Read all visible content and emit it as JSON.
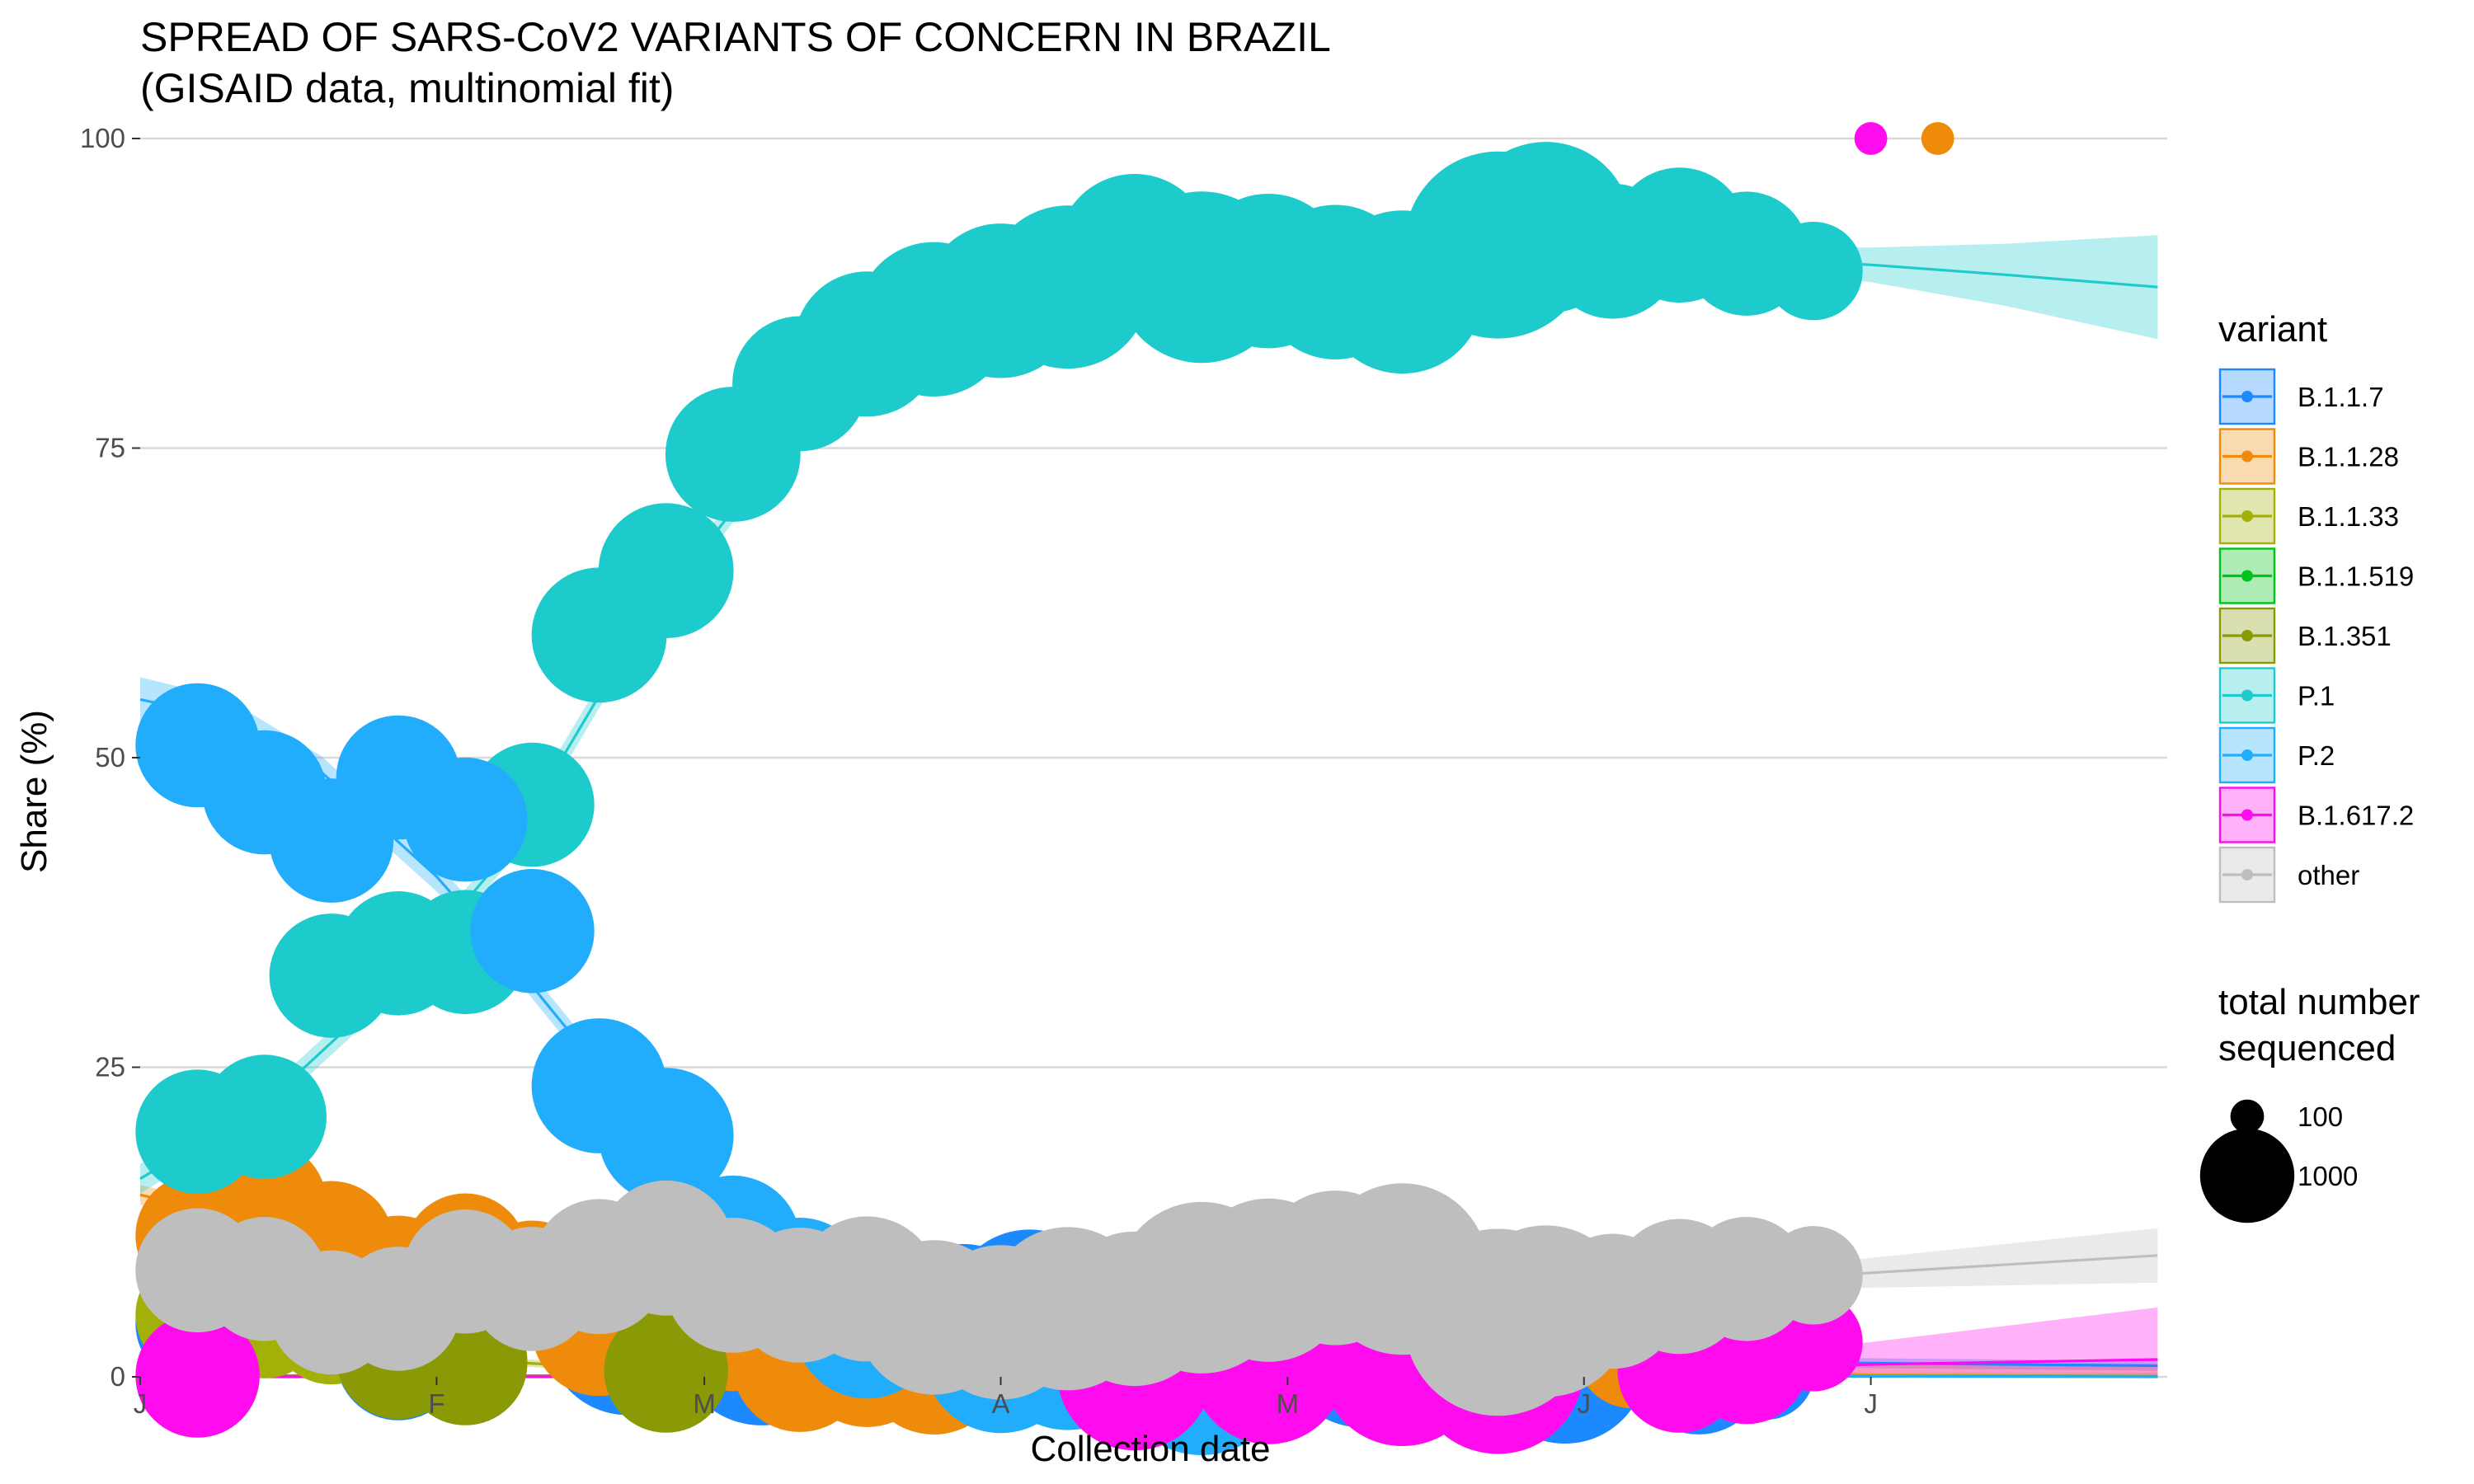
{
  "chart_data": {
    "type": "scatter",
    "title": [
      "SPREAD OF SARS-CoV2 VARIANTS OF CONCERN IN BRAZIL",
      "(GISAID data, multinomial fit)"
    ],
    "xlabel": "Collection date",
    "ylabel": "Share (%)",
    "xlim": [
      "2021-01-01",
      "2021-07-31"
    ],
    "ylim": [
      0,
      100
    ],
    "x_ticks": [
      {
        "date": "2021-01-01",
        "label": "J"
      },
      {
        "date": "2021-02-01",
        "label": "F"
      },
      {
        "date": "2021-03-01",
        "label": "M"
      },
      {
        "date": "2021-04-01",
        "label": "A"
      },
      {
        "date": "2021-05-01",
        "label": "M"
      },
      {
        "date": "2021-06-01",
        "label": "J"
      },
      {
        "date": "2021-07-01",
        "label": "J"
      }
    ],
    "y_ticks": [
      0,
      25,
      50,
      75,
      100
    ],
    "grid": "horizontal",
    "legend": {
      "placement": "right",
      "color_title": "variant",
      "size_title": [
        "total number",
        "sequenced"
      ],
      "size_entries": [
        {
          "label": "100",
          "value": 100
        },
        {
          "label": "1000",
          "value": 1000
        }
      ]
    },
    "series": [
      {
        "name": "B.1.1.7",
        "color": "#1d89ff",
        "fit": [
          [
            "2021-01-01",
            1.5
          ],
          [
            "2021-01-22",
            2.5
          ],
          [
            "2021-02-15",
            4
          ],
          [
            "2021-03-05",
            4.2
          ],
          [
            "2021-03-25",
            3.6
          ],
          [
            "2021-04-15",
            2.8
          ],
          [
            "2021-05-10",
            1.8
          ],
          [
            "2021-06-01",
            1.3
          ],
          [
            "2021-07-31",
            0.9
          ]
        ],
        "band": 0.4,
        "points": [
          [
            "2021-01-07",
            4.3,
            500
          ],
          [
            "2021-01-28",
            1.5,
            500
          ],
          [
            "2021-02-21",
            3.5,
            900
          ],
          [
            "2021-03-07",
            3.0,
            1000
          ],
          [
            "2021-03-14",
            4.5,
            900
          ],
          [
            "2021-03-28",
            3.8,
            1000
          ],
          [
            "2021-04-04",
            5.3,
            900
          ],
          [
            "2021-04-11",
            3.6,
            1000
          ],
          [
            "2021-04-18",
            3.0,
            1200
          ],
          [
            "2021-04-25",
            3.1,
            1200
          ],
          [
            "2021-05-09",
            2.8,
            1000
          ],
          [
            "2021-05-16",
            2.3,
            1000
          ],
          [
            "2021-05-23",
            3.0,
            1000
          ],
          [
            "2021-05-30",
            1.2,
            900
          ],
          [
            "2021-06-13",
            0.8,
            600
          ],
          [
            "2021-06-20",
            0.5,
            300
          ]
        ]
      },
      {
        "name": "B.1.1.28",
        "color": "#ef8b0a",
        "fit": [
          [
            "2021-01-01",
            14.7
          ],
          [
            "2021-01-14",
            12.3
          ],
          [
            "2021-02-01",
            8.9
          ],
          [
            "2021-02-15",
            6.2
          ],
          [
            "2021-03-01",
            3.8
          ],
          [
            "2021-03-15",
            2.1
          ],
          [
            "2021-04-01",
            1.0
          ],
          [
            "2021-05-01",
            0.35
          ],
          [
            "2021-07-31",
            0.05
          ]
        ],
        "band": 0.8,
        "points": [
          [
            "2021-01-07",
            11.4,
            500
          ],
          [
            "2021-01-14",
            14.0,
            500
          ],
          [
            "2021-01-21",
            10.8,
            500
          ],
          [
            "2021-01-28",
            8.0,
            500
          ],
          [
            "2021-02-04",
            9.8,
            500
          ],
          [
            "2021-02-11",
            7.6,
            500
          ],
          [
            "2021-02-18",
            3.9,
            600
          ],
          [
            "2021-02-25",
            3.5,
            600
          ],
          [
            "2021-03-04",
            4.3,
            600
          ],
          [
            "2021-03-11",
            1.0,
            600
          ],
          [
            "2021-03-18",
            1.8,
            700
          ],
          [
            "2021-03-25",
            1.2,
            700
          ],
          [
            "2021-05-23",
            0.8,
            700
          ],
          [
            "2021-06-06",
            2.0,
            400
          ],
          [
            "2021-07-08",
            100,
            20
          ]
        ]
      },
      {
        "name": "B.1.1.33",
        "color": "#a3b008",
        "fit": [
          [
            "2021-01-01",
            4.2
          ],
          [
            "2021-01-22",
            2.0
          ],
          [
            "2021-02-15",
            0.9
          ],
          [
            "2021-03-15",
            0.3
          ],
          [
            "2021-04-15",
            0.1
          ],
          [
            "2021-07-31",
            0.02
          ]
        ],
        "band": 0.3,
        "points": [
          [
            "2021-01-07",
            5.0,
            500
          ],
          [
            "2021-01-14",
            4.9,
            500
          ],
          [
            "2021-01-21",
            4.4,
            500
          ],
          [
            "2021-01-28",
            2.0,
            500
          ],
          [
            "2021-02-04",
            1.3,
            500
          ]
        ]
      },
      {
        "name": "B.1.1.519",
        "color": "#00c31a",
        "fit": [
          [
            "2021-01-01",
            0.05
          ],
          [
            "2021-07-31",
            0.05
          ]
        ],
        "band": 0.05,
        "points": []
      },
      {
        "name": "B.1.351",
        "color": "#8a9a07",
        "fit": [
          [
            "2021-01-01",
            0.1
          ],
          [
            "2021-07-31",
            0.05
          ]
        ],
        "band": 0.05,
        "points": [
          [
            "2021-01-28",
            1.6,
            500
          ],
          [
            "2021-02-04",
            1.1,
            500
          ],
          [
            "2021-02-25",
            0.5,
            500
          ],
          [
            "2021-05-23",
            0.6,
            700
          ]
        ]
      },
      {
        "name": "P.1",
        "color": "#1ecbcc",
        "fit": [
          [
            "2021-01-01",
            16
          ],
          [
            "2021-01-14",
            22
          ],
          [
            "2021-01-28",
            32
          ],
          [
            "2021-02-08",
            42
          ],
          [
            "2021-02-18",
            55
          ],
          [
            "2021-03-01",
            67
          ],
          [
            "2021-03-11",
            77
          ],
          [
            "2021-03-21",
            83
          ],
          [
            "2021-04-01",
            87.5
          ],
          [
            "2021-04-15",
            89.8
          ],
          [
            "2021-05-01",
            90.8
          ],
          [
            "2021-05-15",
            91.1
          ],
          [
            "2021-06-01",
            90.9
          ],
          [
            "2021-06-15",
            90.4
          ],
          [
            "2021-07-01",
            89.8
          ],
          [
            "2021-07-15",
            89.0
          ],
          [
            "2021-07-31",
            88.0
          ]
        ],
        "band_widths": [
          1.2,
          1.0,
          1.0,
          1.0,
          1.0,
          1.0,
          1.0,
          0.9,
          0.8,
          0.6,
          0.6,
          0.6,
          0.6,
          0.8,
          1.4,
          2.5,
          4.2
        ],
        "points": [
          [
            "2021-01-07",
            19.8,
            500
          ],
          [
            "2021-01-14",
            21.0,
            500
          ],
          [
            "2021-01-21",
            32.4,
            500
          ],
          [
            "2021-01-28",
            34.2,
            500
          ],
          [
            "2021-02-04",
            34.3,
            500
          ],
          [
            "2021-02-11",
            46.2,
            500
          ],
          [
            "2021-02-18",
            59.9,
            600
          ],
          [
            "2021-02-25",
            65.1,
            600
          ],
          [
            "2021-03-04",
            74.5,
            600
          ],
          [
            "2021-03-11",
            80.2,
            600
          ],
          [
            "2021-03-18",
            83.4,
            700
          ],
          [
            "2021-03-25",
            85.4,
            800
          ],
          [
            "2021-04-01",
            86.9,
            800
          ],
          [
            "2021-04-08",
            88.0,
            900
          ],
          [
            "2021-04-15",
            90.9,
            800
          ],
          [
            "2021-04-22",
            88.8,
            1000
          ],
          [
            "2021-04-29",
            89.3,
            800
          ],
          [
            "2021-05-06",
            88.4,
            800
          ],
          [
            "2021-05-13",
            87.6,
            900
          ],
          [
            "2021-05-23",
            91.4,
            1200
          ],
          [
            "2021-05-28",
            92.8,
            1000
          ],
          [
            "2021-06-04",
            90.9,
            600
          ],
          [
            "2021-06-11",
            92.2,
            600
          ],
          [
            "2021-06-18",
            90.7,
            500
          ],
          [
            "2021-06-25",
            89.3,
            300
          ]
        ]
      },
      {
        "name": "P.2",
        "color": "#21adfb",
        "fit": [
          [
            "2021-01-01",
            54.7
          ],
          [
            "2021-01-10",
            53.2
          ],
          [
            "2021-01-20",
            48.8
          ],
          [
            "2021-02-01",
            40.4
          ],
          [
            "2021-02-10",
            32.5
          ],
          [
            "2021-02-20",
            23.0
          ],
          [
            "2021-03-01",
            15.7
          ],
          [
            "2021-03-10",
            9.2
          ],
          [
            "2021-03-20",
            4.8
          ],
          [
            "2021-04-01",
            1.9
          ],
          [
            "2021-04-15",
            0.6
          ],
          [
            "2021-05-01",
            0.15
          ],
          [
            "2021-07-31",
            0
          ]
        ],
        "band_widths": [
          1.8,
          1.6,
          1.3,
          1.2,
          1.0,
          1.0,
          0.8,
          0.6,
          0.4,
          0.2,
          0.1,
          0.1,
          0.05
        ],
        "points": [
          [
            "2021-01-07",
            51.0,
            500
          ],
          [
            "2021-01-14",
            47.2,
            500
          ],
          [
            "2021-01-21",
            43.3,
            500
          ],
          [
            "2021-01-28",
            48.4,
            500
          ],
          [
            "2021-02-04",
            45.0,
            500
          ],
          [
            "2021-02-11",
            36.0,
            500
          ],
          [
            "2021-02-18",
            23.5,
            600
          ],
          [
            "2021-02-25",
            19.5,
            600
          ],
          [
            "2021-03-04",
            10.8,
            600
          ],
          [
            "2021-03-11",
            7.4,
            600
          ],
          [
            "2021-03-18",
            4.1,
            700
          ],
          [
            "2021-04-01",
            1.7,
            800
          ],
          [
            "2021-04-08",
            2.3,
            900
          ],
          [
            "2021-04-15",
            0.9,
            800
          ],
          [
            "2021-04-22",
            0.6,
            1000
          ]
        ]
      },
      {
        "name": "B.1.617.2",
        "color": "#fe0cee",
        "fit": [
          [
            "2021-01-01",
            0
          ],
          [
            "2021-03-01",
            0
          ],
          [
            "2021-04-15",
            0.05
          ],
          [
            "2021-05-15",
            0.2
          ],
          [
            "2021-06-15",
            0.7
          ],
          [
            "2021-07-01",
            1.0
          ],
          [
            "2021-07-31",
            1.4
          ]
        ],
        "band_lower": [
          0,
          0,
          0,
          0,
          0.2,
          0.3,
          0.2
        ],
        "band_upper": [
          0,
          0,
          0.1,
          0.3,
          1.5,
          2.8,
          5.6
        ],
        "points": [
          [
            "2021-01-07",
            0.1,
            500
          ],
          [
            "2021-04-15",
            0.3,
            800
          ],
          [
            "2021-04-29",
            0.8,
            800
          ],
          [
            "2021-05-13",
            1.0,
            900
          ],
          [
            "2021-05-23",
            0.7,
            1000
          ],
          [
            "2021-06-11",
            0.5,
            500
          ],
          [
            "2021-06-18",
            1.2,
            500
          ],
          [
            "2021-06-25",
            2.8,
            300
          ],
          [
            "2021-07-01",
            100,
            20
          ]
        ]
      },
      {
        "name": "other",
        "color": "#bebebe",
        "fit": [
          [
            "2021-01-01",
            9.6
          ],
          [
            "2021-02-01",
            8.3
          ],
          [
            "2021-03-01",
            7.2
          ],
          [
            "2021-04-01",
            6.2
          ],
          [
            "2021-05-01",
            6.0
          ],
          [
            "2021-06-01",
            6.9
          ],
          [
            "2021-07-01",
            8.4
          ],
          [
            "2021-07-31",
            9.8
          ]
        ],
        "band_widths": [
          0.6,
          0.5,
          0.5,
          0.5,
          0.5,
          0.6,
          1.2,
          2.2
        ],
        "points": [
          [
            "2021-01-07",
            8.6,
            500
          ],
          [
            "2021-01-14",
            7.9,
            500
          ],
          [
            "2021-01-21",
            5.2,
            500
          ],
          [
            "2021-01-28",
            5.5,
            500
          ],
          [
            "2021-02-04",
            8.5,
            500
          ],
          [
            "2021-02-11",
            7.1,
            500
          ],
          [
            "2021-02-18",
            8.9,
            600
          ],
          [
            "2021-02-25",
            10.4,
            600
          ],
          [
            "2021-03-04",
            7.4,
            600
          ],
          [
            "2021-03-11",
            6.6,
            600
          ],
          [
            "2021-03-18",
            7.1,
            700
          ],
          [
            "2021-03-25",
            4.8,
            800
          ],
          [
            "2021-04-01",
            4.4,
            800
          ],
          [
            "2021-04-08",
            5.5,
            900
          ],
          [
            "2021-04-15",
            5.5,
            800
          ],
          [
            "2021-04-22",
            7.2,
            1000
          ],
          [
            "2021-04-29",
            7.8,
            900
          ],
          [
            "2021-05-06",
            8.8,
            800
          ],
          [
            "2021-05-13",
            8.7,
            1000
          ],
          [
            "2021-05-23",
            4.4,
            1200
          ],
          [
            "2021-05-28",
            5.3,
            1000
          ],
          [
            "2021-06-04",
            6.1,
            600
          ],
          [
            "2021-06-11",
            7.3,
            600
          ],
          [
            "2021-06-18",
            7.9,
            500
          ],
          [
            "2021-06-25",
            8.2,
            300
          ]
        ]
      }
    ]
  }
}
